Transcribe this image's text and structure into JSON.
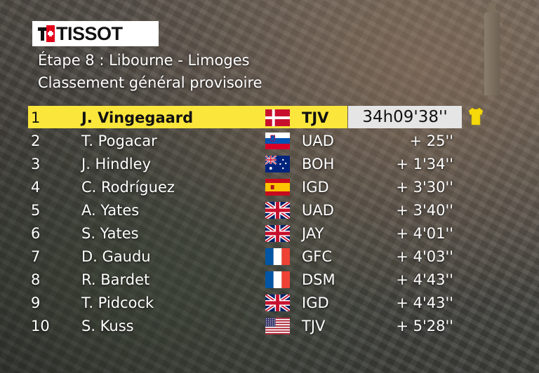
{
  "brand": {
    "logo_text": "TISSOT"
  },
  "header": {
    "stage": "Étape 8 : Libourne - Limoges",
    "subtitle": "Classement général provisoire"
  },
  "colors": {
    "leader_bar": "#fbe63c",
    "time_box": "#e5e5e5",
    "logo_red": "#e2001a"
  },
  "standings": [
    {
      "pos": "1",
      "name": "J. Vingegaard",
      "flag": "denmark",
      "team": "TJV",
      "time": "34h09'38''"
    },
    {
      "pos": "2",
      "name": "T. Pogacar",
      "flag": "slovenia",
      "team": "UAD",
      "time": "+ 25''"
    },
    {
      "pos": "3",
      "name": "J. Hindley",
      "flag": "australia",
      "team": "BOH",
      "time": "+ 1'34''"
    },
    {
      "pos": "4",
      "name": "C. Rodríguez",
      "flag": "spain",
      "team": "IGD",
      "time": "+ 3'30''"
    },
    {
      "pos": "5",
      "name": "A. Yates",
      "flag": "uk",
      "team": "UAD",
      "time": "+ 3'40''"
    },
    {
      "pos": "6",
      "name": "S. Yates",
      "flag": "uk",
      "team": "JAY",
      "time": "+ 4'01''"
    },
    {
      "pos": "7",
      "name": "D. Gaudu",
      "flag": "france",
      "team": "GFC",
      "time": "+ 4'03''"
    },
    {
      "pos": "8",
      "name": "R. Bardet",
      "flag": "france",
      "team": "DSM",
      "time": "+ 4'43''"
    },
    {
      "pos": "9",
      "name": "T. Pidcock",
      "flag": "uk",
      "team": "IGD",
      "time": "+ 4'43''"
    },
    {
      "pos": "10",
      "name": "S. Kuss",
      "flag": "usa",
      "team": "TJV",
      "time": "+ 5'28''"
    }
  ]
}
